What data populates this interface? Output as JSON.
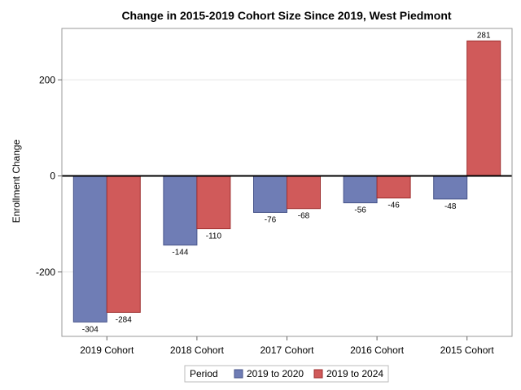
{
  "chart_data": {
    "type": "bar",
    "title": "Change in 2015-2019 Cohort Size Since 2019, West Piedmont",
    "xlabel": "",
    "ylabel": "Enrollment Change",
    "categories": [
      "2019 Cohort",
      "2018 Cohort",
      "2017 Cohort",
      "2016 Cohort",
      "2015 Cohort"
    ],
    "series": [
      {
        "name": "2019 to 2020",
        "values": [
          -304,
          -144,
          -76,
          -56,
          -48
        ],
        "color": "#6f7db5"
      },
      {
        "name": "2019 to 2024",
        "values": [
          -284,
          -110,
          -68,
          -46,
          281
        ],
        "color": "#d05a5a"
      }
    ],
    "series_labels": [
      [
        "-304",
        "-144",
        "-76",
        "-56",
        "-48"
      ],
      [
        "-284",
        "-110",
        "-68",
        "-46",
        "281"
      ]
    ],
    "ylim": [
      -334,
      307
    ],
    "yticks": [
      200,
      0,
      -200
    ],
    "ytick_labels": [
      "200",
      "0",
      "-200"
    ],
    "grid": true,
    "legend": {
      "title": "Period",
      "placement": "bottom"
    }
  }
}
